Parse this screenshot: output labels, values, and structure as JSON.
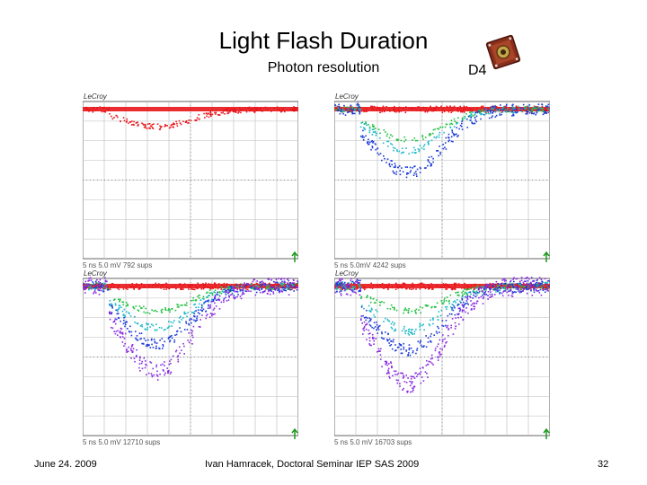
{
  "slide": {
    "title": "Light Flash Duration",
    "subtitle": "Photon resolution",
    "detector": "D4"
  },
  "scopes": [
    {
      "brand": "LeCroy",
      "readout": "5 ns   5.0 mV   792 sups"
    },
    {
      "brand": "LeCroy",
      "readout": "5 ns   5.0mV  4242 sups"
    },
    {
      "brand": "LeCroy",
      "readout": "5 ns   5.0 mV   12710 sups"
    },
    {
      "brand": "LeCroy",
      "readout": "5 ns   5.0 mV   16703 sups"
    }
  ],
  "footer": {
    "date": "June 24. 2009",
    "author": "Ivan Hamracek, Doctoral Seminar  IEP SAS 2009",
    "page": "32"
  },
  "colors": {
    "baseline": "#e8161b",
    "band_green": "#20c040",
    "band_cyan": "#19b8c8",
    "band_blue": "#1c3ad8",
    "band_violet": "#8a2be2",
    "grid": "#666666"
  }
}
